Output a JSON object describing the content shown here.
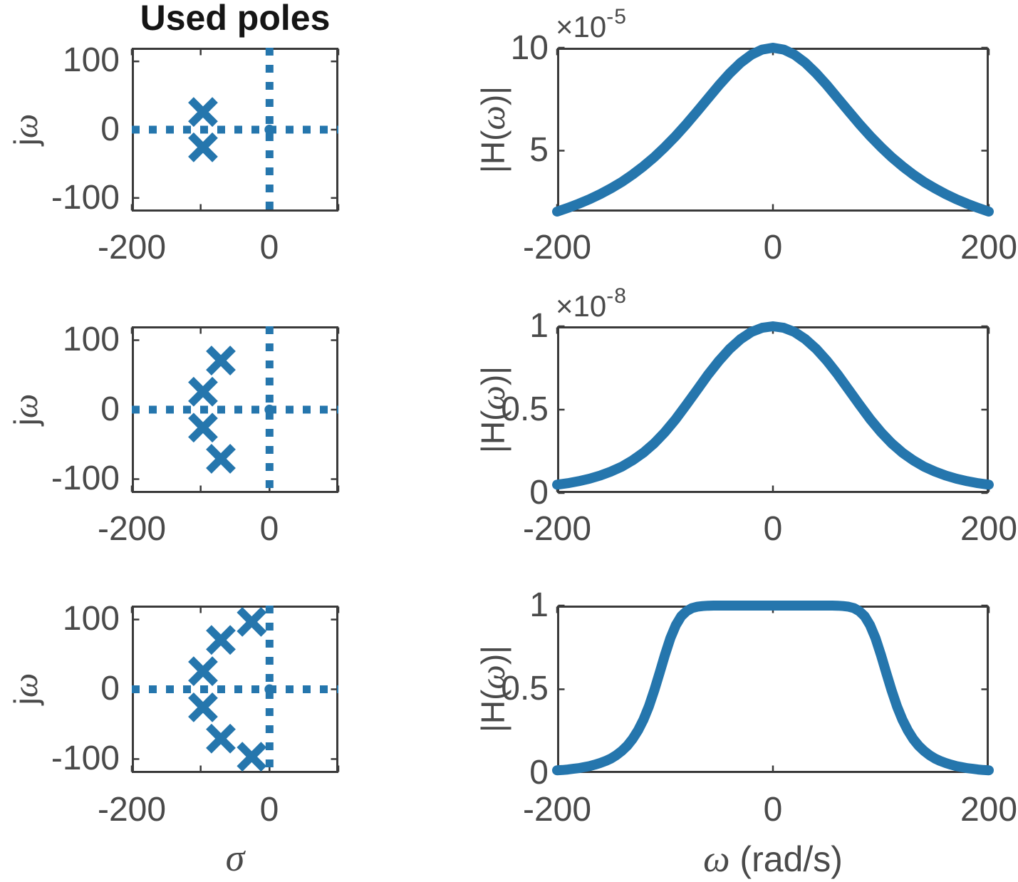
{
  "figure": {
    "background": "#ffffff",
    "accent_blue": "#2576AD",
    "axis_color": "#3a3a3a",
    "label_color": "#4a4a4a",
    "title_color": "#151515"
  },
  "chart_data": [
    {
      "type": "scatter",
      "name": "pole-plot-row1",
      "title": "Used poles",
      "marker": "x",
      "ylabel_parts": [
        "j",
        "ω"
      ],
      "xlim": [
        -200,
        100
      ],
      "ylim": [
        -120,
        120
      ],
      "xticks": [
        -200,
        -100,
        0,
        100
      ],
      "yticks": [
        -100,
        0,
        100
      ],
      "xtick_labels": [
        "-200",
        "0"
      ],
      "xtick_label_values": [
        -200,
        0
      ],
      "ytick_labels": [
        "100",
        "0",
        "-100"
      ],
      "ytick_label_values": [
        100,
        0,
        -100
      ],
      "cross_lines": {
        "vertical_at": 0,
        "horizontal_at": 0,
        "style": "dotted"
      },
      "poles": [
        [
          -96.6,
          25.9
        ],
        [
          -96.6,
          -25.9
        ]
      ]
    },
    {
      "type": "line",
      "name": "response-row1",
      "ylabel_parts": [
        "|H(",
        "ω",
        ")|"
      ],
      "exponent_base": "×10",
      "exponent_power": "-5",
      "xlim": [
        -200,
        200
      ],
      "ylim": [
        2.04,
        10
      ],
      "xticks": [
        -200,
        0,
        200
      ],
      "yticks": [
        5,
        10
      ],
      "xtick_labels": [
        "-200",
        "0",
        "200"
      ],
      "xtick_label_values": [
        -200,
        0,
        200
      ],
      "ytick_labels": [
        "10",
        "5"
      ],
      "ytick_label_values": [
        10,
        5
      ],
      "x": [
        -200,
        -190,
        -180,
        -170,
        -160,
        -150,
        -140,
        -130,
        -120,
        -110,
        -100,
        -90,
        -80,
        -70,
        -60,
        -50,
        -40,
        -30,
        -20,
        -10,
        0,
        10,
        20,
        30,
        40,
        50,
        60,
        70,
        80,
        90,
        100,
        110,
        120,
        130,
        140,
        150,
        160,
        170,
        180,
        190,
        200
      ],
      "y": [
        2.04,
        2.22,
        2.42,
        2.64,
        2.89,
        3.17,
        3.48,
        3.84,
        4.24,
        4.68,
        5.18,
        5.72,
        6.3,
        6.92,
        7.55,
        8.18,
        8.76,
        9.27,
        9.66,
        9.91,
        10,
        9.91,
        9.66,
        9.27,
        8.76,
        8.18,
        7.55,
        6.92,
        6.3,
        5.72,
        5.18,
        4.68,
        4.24,
        3.84,
        3.48,
        3.17,
        2.89,
        2.64,
        2.42,
        2.22,
        2.04
      ]
    },
    {
      "type": "scatter",
      "name": "pole-plot-row2",
      "marker": "x",
      "ylabel_parts": [
        "j",
        "ω"
      ],
      "xlim": [
        -200,
        100
      ],
      "ylim": [
        -120,
        120
      ],
      "xticks": [
        -200,
        -100,
        0,
        100
      ],
      "yticks": [
        -100,
        0,
        100
      ],
      "xtick_labels": [
        "-200",
        "0"
      ],
      "xtick_label_values": [
        -200,
        0
      ],
      "ytick_labels": [
        "100",
        "0",
        "-100"
      ],
      "ytick_label_values": [
        100,
        0,
        -100
      ],
      "cross_lines": {
        "vertical_at": 0,
        "horizontal_at": 0,
        "style": "dotted"
      },
      "poles": [
        [
          -70.7,
          70.7
        ],
        [
          -96.6,
          25.9
        ],
        [
          -96.6,
          -25.9
        ],
        [
          -70.7,
          -70.7
        ]
      ]
    },
    {
      "type": "line",
      "name": "response-row2",
      "ylabel_parts": [
        "|H(",
        "ω",
        ")|"
      ],
      "exponent_base": "×10",
      "exponent_power": "-8",
      "xlim": [
        -200,
        200
      ],
      "ylim": [
        0,
        1
      ],
      "xticks": [
        -200,
        0,
        200
      ],
      "yticks": [
        0,
        0.5,
        1
      ],
      "xtick_labels": [
        "-200",
        "0",
        "200"
      ],
      "xtick_label_values": [
        -200,
        0,
        200
      ],
      "ytick_labels": [
        "1",
        "0.5",
        "0"
      ],
      "ytick_label_values": [
        1,
        0.5,
        0
      ],
      "x": [
        -200,
        -190,
        -180,
        -170,
        -160,
        -150,
        -140,
        -130,
        -120,
        -110,
        -100,
        -90,
        -80,
        -70,
        -60,
        -50,
        -40,
        -30,
        -20,
        -10,
        0,
        10,
        20,
        30,
        40,
        50,
        60,
        70,
        80,
        90,
        100,
        110,
        120,
        130,
        140,
        150,
        160,
        170,
        180,
        190,
        200
      ],
      "y": [
        0.05,
        0.059,
        0.071,
        0.086,
        0.105,
        0.129,
        0.158,
        0.196,
        0.242,
        0.298,
        0.366,
        0.444,
        0.531,
        0.621,
        0.711,
        0.793,
        0.865,
        0.923,
        0.966,
        0.991,
        1,
        0.991,
        0.966,
        0.923,
        0.865,
        0.793,
        0.711,
        0.621,
        0.531,
        0.444,
        0.366,
        0.298,
        0.242,
        0.196,
        0.158,
        0.129,
        0.105,
        0.086,
        0.071,
        0.059,
        0.05
      ]
    },
    {
      "type": "scatter",
      "name": "pole-plot-row3",
      "marker": "x",
      "ylabel_parts": [
        "j",
        "ω"
      ],
      "xlabel": "σ",
      "xlim": [
        -200,
        100
      ],
      "ylim": [
        -120,
        120
      ],
      "xticks": [
        -200,
        -100,
        0,
        100
      ],
      "yticks": [
        -100,
        0,
        100
      ],
      "xtick_labels": [
        "-200",
        "0"
      ],
      "xtick_label_values": [
        -200,
        0
      ],
      "ytick_labels": [
        "100",
        "0",
        "-100"
      ],
      "ytick_label_values": [
        100,
        0,
        -100
      ],
      "cross_lines": {
        "vertical_at": 0,
        "horizontal_at": 0,
        "style": "dotted"
      },
      "poles": [
        [
          -25.9,
          96.6
        ],
        [
          -70.7,
          70.7
        ],
        [
          -96.6,
          25.9
        ],
        [
          -96.6,
          -25.9
        ],
        [
          -70.7,
          -70.7
        ],
        [
          -25.9,
          -96.6
        ]
      ]
    },
    {
      "type": "line",
      "name": "response-row3",
      "ylabel_parts": [
        "|H(",
        "ω",
        ")|"
      ],
      "xlabel_parts": [
        "ω",
        " (rad/s)"
      ],
      "xlim": [
        -200,
        200
      ],
      "ylim": [
        0,
        1
      ],
      "xticks": [
        -200,
        0,
        200
      ],
      "yticks": [
        0,
        0.5,
        1
      ],
      "xtick_labels": [
        "-200",
        "0",
        "200"
      ],
      "xtick_label_values": [
        -200,
        0,
        200
      ],
      "ytick_labels": [
        "1",
        "0.5",
        "0"
      ],
      "ytick_label_values": [
        1,
        0.5,
        0
      ],
      "x": [
        -200,
        -195,
        -190,
        -185,
        -180,
        -175,
        -170,
        -165,
        -160,
        -155,
        -150,
        -145,
        -140,
        -135,
        -130,
        -125,
        -120,
        -115,
        -110,
        -105,
        -100,
        -95,
        -90,
        -85,
        -80,
        -75,
        -70,
        -65,
        -60,
        -55,
        -50,
        -45,
        -40,
        -35,
        -30,
        -25,
        -20,
        -15,
        -10,
        -5,
        0,
        5,
        10,
        15,
        20,
        25,
        30,
        35,
        40,
        45,
        50,
        55,
        60,
        65,
        70,
        75,
        80,
        85,
        90,
        95,
        100,
        105,
        110,
        115,
        120,
        125,
        130,
        135,
        140,
        145,
        150,
        155,
        160,
        165,
        170,
        175,
        180,
        185,
        190,
        195,
        200
      ],
      "y": [
        0.016,
        0.018,
        0.021,
        0.025,
        0.029,
        0.035,
        0.041,
        0.05,
        0.06,
        0.072,
        0.087,
        0.107,
        0.132,
        0.163,
        0.203,
        0.254,
        0.318,
        0.397,
        0.492,
        0.598,
        0.707,
        0.806,
        0.883,
        0.936,
        0.967,
        0.985,
        0.993,
        0.997,
        0.999,
        1,
        1,
        1,
        1,
        1,
        1,
        1,
        1,
        1,
        1,
        1,
        1,
        1,
        1,
        1,
        1,
        1,
        1,
        1,
        1,
        1,
        1,
        1,
        0.999,
        0.997,
        0.993,
        0.985,
        0.967,
        0.936,
        0.883,
        0.806,
        0.707,
        0.598,
        0.492,
        0.397,
        0.318,
        0.254,
        0.203,
        0.163,
        0.132,
        0.107,
        0.087,
        0.072,
        0.06,
        0.05,
        0.041,
        0.035,
        0.029,
        0.025,
        0.021,
        0.018,
        0.016
      ]
    }
  ]
}
